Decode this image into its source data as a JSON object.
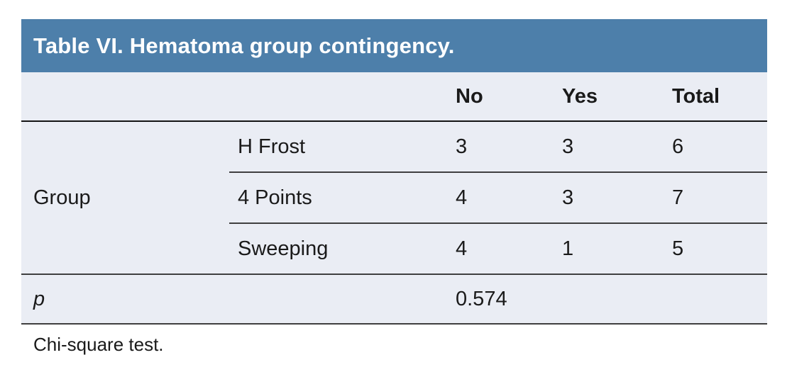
{
  "title": "Table VI. Hematoma group contingency.",
  "columns": {
    "no": "No",
    "yes": "Yes",
    "total": "Total"
  },
  "group": {
    "label": "Group",
    "rows": [
      {
        "name": "H Frost",
        "no": "3",
        "yes": "3",
        "total": "6"
      },
      {
        "name": "4 Points",
        "no": "4",
        "yes": "3",
        "total": "7"
      },
      {
        "name": "Sweeping",
        "no": "4",
        "yes": "1",
        "total": "5"
      }
    ]
  },
  "p_row": {
    "label": "p",
    "value": "0.574"
  },
  "footnote": "Chi-square test.",
  "colors": {
    "header_bg": "#4d7faa",
    "row_bg": "#eaedf4",
    "heavy_line": "#141414",
    "light_line": "#3f3f3f"
  }
}
